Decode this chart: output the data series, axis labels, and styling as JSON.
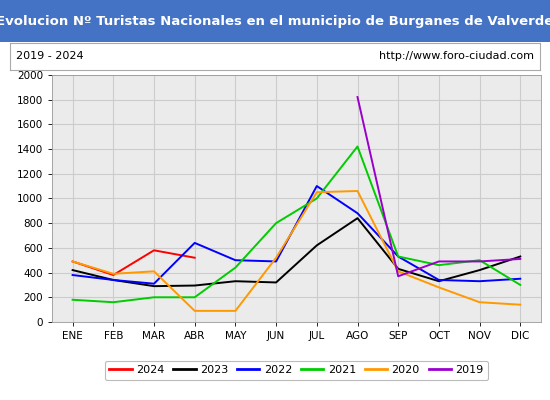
{
  "title": "Evolucion Nº Turistas Nacionales en el municipio de Burganes de Valverde",
  "subtitle_left": "2019 - 2024",
  "subtitle_right": "http://www.foro-ciudad.com",
  "title_bg_color": "#4472c4",
  "title_text_color": "#ffffff",
  "months": [
    "ENE",
    "FEB",
    "MAR",
    "ABR",
    "MAY",
    "JUN",
    "JUL",
    "AGO",
    "SEP",
    "OCT",
    "NOV",
    "DIC"
  ],
  "ylim": [
    0,
    2000
  ],
  "yticks": [
    0,
    200,
    400,
    600,
    800,
    1000,
    1200,
    1400,
    1600,
    1800,
    2000
  ],
  "series": {
    "2024": {
      "color": "#ff0000",
      "data": [
        490,
        380,
        580,
        520,
        null,
        null,
        null,
        null,
        null,
        null,
        null,
        null
      ]
    },
    "2023": {
      "color": "#000000",
      "data": [
        420,
        340,
        290,
        295,
        330,
        320,
        620,
        840,
        430,
        330,
        420,
        530
      ]
    },
    "2022": {
      "color": "#0000ff",
      "data": [
        380,
        340,
        310,
        640,
        500,
        490,
        1100,
        880,
        530,
        340,
        330,
        350
      ]
    },
    "2021": {
      "color": "#00cc00",
      "data": [
        180,
        160,
        200,
        200,
        440,
        800,
        1000,
        1420,
        530,
        460,
        500,
        300
      ]
    },
    "2020": {
      "color": "#ff9900",
      "data": [
        490,
        390,
        410,
        90,
        90,
        520,
        1050,
        1060,
        410,
        280,
        160,
        140
      ]
    },
    "2019": {
      "color": "#9900cc",
      "data": [
        null,
        null,
        null,
        null,
        null,
        null,
        null,
        1820,
        370,
        490,
        490,
        510
      ]
    }
  },
  "legend_order": [
    "2024",
    "2023",
    "2022",
    "2021",
    "2020",
    "2019"
  ],
  "grid_color": "#cccccc",
  "plot_bg_color": "#ebebeb",
  "outer_bg_color": "#ffffff"
}
